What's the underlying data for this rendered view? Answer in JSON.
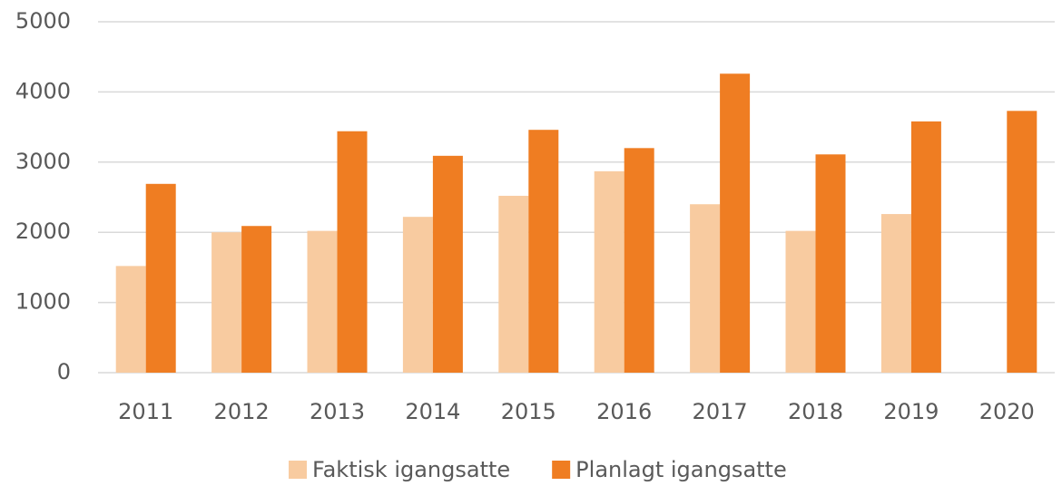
{
  "chart_data": {
    "type": "bar",
    "categories": [
      "2011",
      "2012",
      "2013",
      "2014",
      "2015",
      "2016",
      "2017",
      "2018",
      "2019",
      "2020"
    ],
    "series": [
      {
        "name": "Faktisk igangsatte",
        "color": "#f8cba0",
        "values": [
          1520,
          2000,
          2020,
          2220,
          2520,
          2870,
          2400,
          2020,
          2260,
          null
        ]
      },
      {
        "name": "Planlagt igangsatte",
        "color": "#ef7d22",
        "values": [
          2690,
          2090,
          3440,
          3090,
          3460,
          3200,
          4260,
          3110,
          3580,
          3730
        ]
      }
    ],
    "ylim": [
      0,
      5000
    ],
    "yticks": [
      0,
      1000,
      2000,
      3000,
      4000,
      5000
    ],
    "grid": true,
    "legend": "bottom"
  }
}
